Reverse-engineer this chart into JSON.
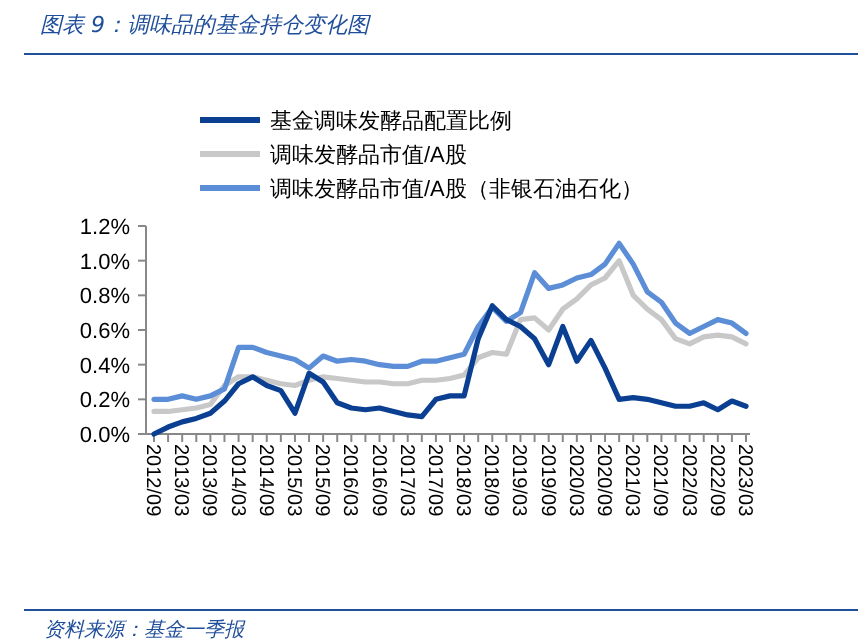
{
  "chart_data": {
    "type": "line",
    "title": "图表 9：调味品的基金持仓变化图",
    "annotations": [
      "资料来源：基金一季报"
    ],
    "categories": [
      "2012/09",
      null,
      "2013/03",
      null,
      "2013/09",
      null,
      "2014/03",
      null,
      "2014/09",
      null,
      "2015/03",
      null,
      "2015/09",
      null,
      "2016/03",
      null,
      "2016/09",
      null,
      "2017/03",
      null,
      "2017/09",
      null,
      "2018/03",
      null,
      "2018/09",
      null,
      "2019/03",
      null,
      "2019/09",
      null,
      "2020/03",
      null,
      "2020/09",
      null,
      "2021/03",
      null,
      "2021/09",
      null,
      "2022/03",
      null,
      "2022/09",
      null,
      "2023/03"
    ],
    "series": [
      {
        "name": "基金调味发酵品配置比例",
        "color": "#0b3f91",
        "values": [
          0.0,
          0.04,
          0.07,
          0.09,
          0.12,
          0.19,
          0.29,
          0.33,
          0.28,
          0.25,
          0.12,
          0.35,
          0.3,
          0.18,
          0.15,
          0.14,
          0.15,
          0.13,
          0.11,
          0.1,
          0.2,
          0.22,
          0.22,
          0.55,
          0.74,
          0.66,
          0.62,
          0.55,
          0.4,
          0.62,
          0.42,
          0.54,
          0.38,
          0.2,
          0.21,
          0.2,
          0.18,
          0.16,
          0.16,
          0.18,
          0.14,
          0.19,
          0.16
        ]
      },
      {
        "name": "调味发酵品市值/A股",
        "color": "#c8c8c8",
        "values": [
          0.13,
          0.13,
          0.14,
          0.15,
          0.17,
          0.28,
          0.33,
          0.33,
          0.31,
          0.29,
          0.28,
          0.31,
          0.33,
          0.32,
          0.31,
          0.3,
          0.3,
          0.29,
          0.29,
          0.31,
          0.31,
          0.32,
          0.34,
          0.44,
          0.47,
          0.46,
          0.66,
          0.67,
          0.6,
          0.72,
          0.78,
          0.86,
          0.9,
          1.0,
          0.8,
          0.72,
          0.66,
          0.55,
          0.52,
          0.56,
          0.57,
          0.56,
          0.52
        ]
      },
      {
        "name": "调味发酵品市值/A股（非银石油石化）",
        "color": "#5b8ed6",
        "values": [
          0.2,
          0.2,
          0.22,
          0.2,
          0.22,
          0.26,
          0.5,
          0.5,
          0.47,
          0.45,
          0.43,
          0.38,
          0.45,
          0.42,
          0.43,
          0.42,
          0.4,
          0.39,
          0.39,
          0.42,
          0.42,
          0.44,
          0.46,
          0.62,
          0.73,
          0.65,
          0.7,
          0.93,
          0.84,
          0.86,
          0.9,
          0.92,
          0.98,
          1.1,
          0.98,
          0.82,
          0.76,
          0.64,
          0.58,
          0.62,
          0.66,
          0.64,
          0.58
        ]
      }
    ],
    "ylim": [
      0,
      1.2
    ],
    "yticks": [
      {
        "value": 0,
        "label": "0.0%"
      },
      {
        "value": 0.2,
        "label": "0.2%"
      },
      {
        "value": 0.4,
        "label": "0.4%"
      },
      {
        "value": 0.6,
        "label": "0.6%"
      },
      {
        "value": 0.8,
        "label": "0.8%"
      },
      {
        "value": 1.0,
        "label": "1.0%"
      },
      {
        "value": 1.2,
        "label": "1.2%"
      }
    ],
    "legend": "top",
    "grid": false,
    "marker": "none",
    "line_style": "solid"
  }
}
